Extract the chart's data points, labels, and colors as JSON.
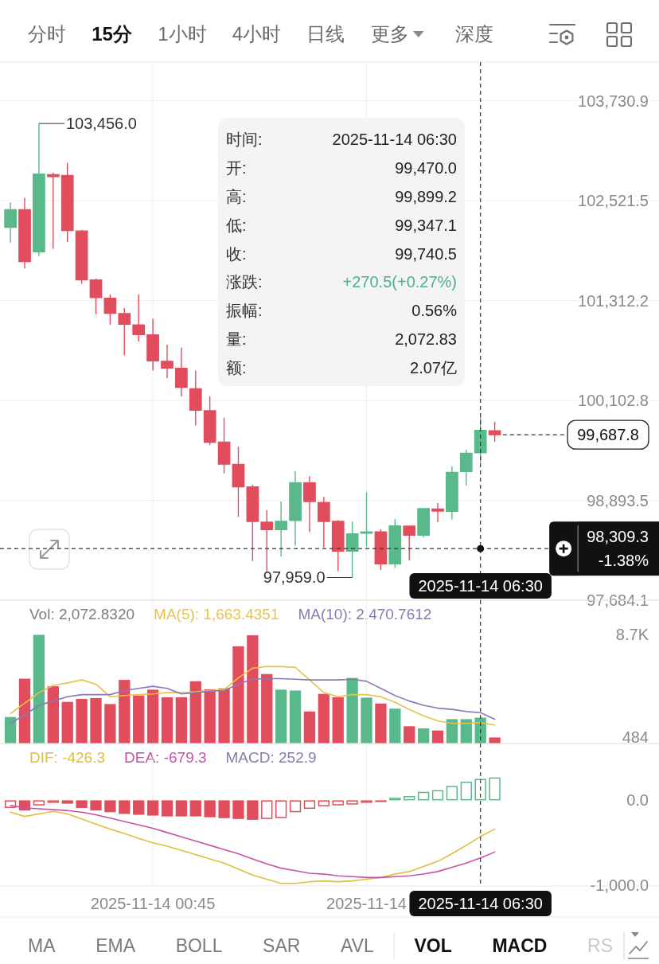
{
  "chart_data": [
    {
      "type": "other",
      "annotations": [
        "分时",
        "15分",
        "1小时",
        "4小时",
        "日线",
        "更多",
        "深度"
      ],
      "colors": [
        "#6b6b6b",
        "#111111",
        "#6b6b6b",
        "#6b6b6b",
        "#6b6b6b",
        "#6b6b6b",
        "#6b6b6b"
      ]
    },
    {
      "type": "candlestick",
      "x": [
        "2025-11-13T22:15",
        "2025-11-13T22:30",
        "2025-11-13T22:45",
        "2025-11-13T23:00",
        "2025-11-13T23:15",
        "2025-11-13T23:30",
        "2025-11-13T23:45",
        "2025-11-14T00:00",
        "2025-11-14T00:15",
        "2025-11-14T00:30",
        "2025-11-14T00:45",
        "2025-11-14T01:00",
        "2025-11-14T01:15",
        "2025-11-14T01:30",
        "2025-11-14T01:45",
        "2025-11-14T02:00",
        "2025-11-14T02:15",
        "2025-11-14T02:30",
        "2025-11-14T02:45",
        "2025-11-14T03:00",
        "2025-11-14T03:15",
        "2025-11-14T03:30",
        "2025-11-14T03:45",
        "2025-11-14T04:00",
        "2025-11-14T04:15",
        "2025-11-14T04:30",
        "2025-11-14T04:45",
        "2025-11-14T05:00",
        "2025-11-14T05:15",
        "2025-11-14T05:30",
        "2025-11-14T05:45",
        "2025-11-14T06:00",
        "2025-11-14T06:15",
        "2025-11-14T06:30",
        "2025-11-14T06:45"
      ],
      "ohlc": [
        [
          102199,
          102501,
          102014,
          102413
        ],
        [
          102413,
          102557,
          101701,
          101786
        ],
        [
          101904,
          103456.0,
          101850,
          102844
        ],
        [
          102837,
          102863,
          101940,
          102815
        ],
        [
          102826,
          102981,
          102022,
          102162
        ],
        [
          102155,
          102169,
          101516,
          101564
        ],
        [
          101561,
          101579,
          101148,
          101350
        ],
        [
          101339,
          101387,
          101018,
          101159
        ],
        [
          101155,
          101221,
          100650,
          101026
        ],
        [
          101018,
          101387,
          100816,
          100900
        ],
        [
          100897,
          101092,
          100465,
          100583
        ],
        [
          100576,
          100779,
          100373,
          100495
        ],
        [
          100491,
          100742,
          100151,
          100262
        ],
        [
          100244,
          100465,
          99801,
          99985
        ],
        [
          99978,
          100151,
          99561,
          99598
        ],
        [
          99598,
          99893,
          99222,
          99332
        ],
        [
          99329,
          99543,
          98694,
          99056
        ],
        [
          99056,
          99082,
          98159,
          98639
        ],
        [
          98628,
          98776,
          98030,
          98539
        ],
        [
          98539,
          98879,
          98215,
          98639
        ],
        [
          98650,
          99248,
          98344,
          99107
        ],
        [
          99107,
          99185,
          98510,
          98879
        ],
        [
          98868,
          98934,
          98325,
          98639
        ],
        [
          98638,
          98654,
          98038,
          98278
        ],
        [
          98278,
          98638,
          97959.0,
          98487
        ],
        [
          98500,
          98991,
          98333,
          98506
        ],
        [
          98510,
          98542,
          98050,
          98124
        ],
        [
          98124,
          98670,
          98076,
          98584
        ],
        [
          98580,
          98584,
          98166,
          98471
        ],
        [
          98471,
          98796,
          98445,
          98792
        ],
        [
          98789,
          98863,
          98629,
          98763
        ],
        [
          98760,
          99303,
          98661,
          99232
        ],
        [
          99242,
          99505,
          99072,
          99464
        ],
        [
          99470.0,
          99899.2,
          99347.1,
          99740.5
        ],
        [
          99735,
          99843,
          99602,
          99687.8
        ]
      ],
      "colors": [
        "#5ab98b",
        "#e24d5d",
        "#5ab98b",
        "#e24d5d",
        "#e24d5d",
        "#e24d5d",
        "#e24d5d",
        "#e24d5d",
        "#e24d5d",
        "#e24d5d",
        "#e24d5d",
        "#e24d5d",
        "#e24d5d",
        "#e24d5d",
        "#e24d5d",
        "#e24d5d",
        "#e24d5d",
        "#e24d5d",
        "#e24d5d",
        "#5ab98b",
        "#5ab98b",
        "#e24d5d",
        "#e24d5d",
        "#e24d5d",
        "#5ab98b",
        "#5ab98b",
        "#e24d5d",
        "#5ab98b",
        "#e24d5d",
        "#5ab98b",
        "#e24d5d",
        "#5ab98b",
        "#5ab98b",
        "#5ab98b",
        "#e24d5d"
      ],
      "xlim": [
        "2025-11-13T22:04",
        "2025-11-14T09:38"
      ],
      "xticks": [
        {
          "value": "2025-11-14T00:45",
          "label": null
        },
        {
          "value": "2025-11-14T04:30",
          "label": null
        }
      ],
      "ylim": [
        97684.1,
        104200
      ],
      "yticks": [
        {
          "value": 97684.1,
          "label": "97,684.1"
        },
        {
          "value": 98893.5,
          "label": "98,893.5"
        },
        {
          "value": 100102.8,
          "label": "100,102.8"
        },
        {
          "value": 101312.2,
          "label": "101,312.2"
        },
        {
          "value": 102521.5,
          "label": "102,521.5"
        },
        {
          "value": 103730.9,
          "label": "103,730.9"
        }
      ],
      "grid": true,
      "tick_labels": "y",
      "annotations": [
        {
          "text": "103,456.0",
          "x": "2025-11-13T22:45",
          "y": 103456.0
        },
        {
          "text": "97,959.0",
          "x": "2025-11-14T04:15",
          "y": 97959.0
        }
      ],
      "ref_lines": [
        {
          "axis": "x",
          "value": "2025-11-14T06:30",
          "label": "2025-11-14 06:30",
          "line_style": "dashed",
          "color": "#333333"
        },
        {
          "axis": "y",
          "value": 98309.3,
          "label": "98,309.3\n-1.38%",
          "line_style": "dashed",
          "color": "#333333"
        },
        {
          "axis": "y",
          "value": 99687.8,
          "label": "99,687.8",
          "line_style": "dashed",
          "color": "#333333"
        }
      ]
    },
    {
      "type": "other",
      "annotations": [
        "时间:",
        "2025-11-14 06:30",
        "开:",
        "99,470.0",
        "高:",
        "99,899.2",
        "低:",
        "99,347.1",
        "收:",
        "99,740.5",
        "涨跌:",
        "+270.5(+0.27%)",
        "振幅:",
        "0.56%",
        "量:",
        "2,072.83",
        "额:",
        "2.07亿"
      ],
      "colors": [
        "#333333",
        "#222222",
        "#333333",
        "#222222",
        "#333333",
        "#222222",
        "#333333",
        "#222222",
        "#333333",
        "#222222",
        "#333333",
        "#4cb386",
        "#333333",
        "#222222",
        "#333333",
        "#222222",
        "#333333",
        "#222222"
      ]
    },
    {
      "type": "bar",
      "x": [
        "2025-11-13T22:15",
        "2025-11-13T22:30",
        "2025-11-13T22:45",
        "2025-11-13T23:00",
        "2025-11-13T23:15",
        "2025-11-13T23:30",
        "2025-11-13T23:45",
        "2025-11-14T00:00",
        "2025-11-14T00:15",
        "2025-11-14T00:30",
        "2025-11-14T00:45",
        "2025-11-14T01:00",
        "2025-11-14T01:15",
        "2025-11-14T01:30",
        "2025-11-14T01:45",
        "2025-11-14T02:00",
        "2025-11-14T02:15",
        "2025-11-14T02:30",
        "2025-11-14T02:45",
        "2025-11-14T03:00",
        "2025-11-14T03:15",
        "2025-11-14T03:30",
        "2025-11-14T03:45",
        "2025-11-14T04:00",
        "2025-11-14T04:15",
        "2025-11-14T04:30",
        "2025-11-14T04:45",
        "2025-11-14T05:00",
        "2025-11-14T05:15",
        "2025-11-14T05:30",
        "2025-11-14T05:45",
        "2025-11-14T06:00",
        "2025-11-14T06:15",
        "2025-11-14T06:30",
        "2025-11-14T06:45"
      ],
      "legend_title": "Vol: 2,072.8320",
      "legend": "top left",
      "series": [
        {
          "type": "bar",
          "values": [
            2120,
            5190,
            8700,
            4580,
            3330,
            3570,
            3640,
            3160,
            5090,
            3840,
            4310,
            3700,
            3700,
            4980,
            4340,
            4410,
            7780,
            8660,
            5560,
            4310,
            4240,
            2560,
            3970,
            3700,
            5250,
            3670,
            3200,
            2790,
            1380,
            1210,
            1040,
            1950,
            1950,
            2072.832,
            484
          ],
          "colors": [
            "#5ab98b",
            "#e24d5d",
            "#5ab98b",
            "#e24d5d",
            "#e24d5d",
            "#e24d5d",
            "#e24d5d",
            "#e24d5d",
            "#e24d5d",
            "#e24d5d",
            "#e24d5d",
            "#e24d5d",
            "#e24d5d",
            "#e24d5d",
            "#e24d5d",
            "#e24d5d",
            "#e24d5d",
            "#e24d5d",
            "#e24d5d",
            "#5ab98b",
            "#5ab98b",
            "#e24d5d",
            "#e24d5d",
            "#e24d5d",
            "#5ab98b",
            "#5ab98b",
            "#e24d5d",
            "#5ab98b",
            "#e24d5d",
            "#5ab98b",
            "#e24d5d",
            "#5ab98b",
            "#5ab98b",
            "#5ab98b",
            "#e24d5d"
          ]
        },
        {
          "type": "line",
          "name": "MA(5): 1,663.4351",
          "color": "#e6c34b",
          "values": [
            2390,
            3230,
            4070,
            4650,
            4850,
            5090,
            4750,
            3740,
            3840,
            3910,
            3970,
            4070,
            4070,
            4140,
            4240,
            4310,
            5250,
            6030,
            6160,
            6160,
            6100,
            5090,
            4070,
            3740,
            3910,
            3910,
            3740,
            3300,
            2730,
            2220,
            1820,
            1610,
            1610,
            1663.4351,
            1480
          ]
        },
        {
          "type": "line",
          "name": "MA(10): 2,470.7612",
          "color": "#8b78b6",
          "values": [
            1610,
            2290,
            3060,
            3400,
            3740,
            3910,
            3910,
            3910,
            4240,
            4410,
            4580,
            4410,
            3970,
            4070,
            4180,
            4240,
            4750,
            5150,
            5190,
            5190,
            5150,
            5090,
            5090,
            5090,
            5150,
            4980,
            4410,
            3840,
            3400,
            3060,
            2830,
            2730,
            2560,
            2470.7612,
            1950
          ]
        }
      ],
      "xlim": [
        "2025-11-13T22:04",
        "2025-11-14T09:38"
      ],
      "xticks": [
        {
          "value": "2025-11-14T00:45",
          "label": null
        },
        {
          "value": "2025-11-14T04:30",
          "label": null
        }
      ],
      "ylim": [
        0,
        11470
      ],
      "yticks": [
        {
          "value": 484,
          "label": "484"
        },
        {
          "value": 8700,
          "label": "8.7K"
        }
      ],
      "grid": "x",
      "tick_labels": "y",
      "ref_lines": [
        {
          "axis": "x",
          "value": "2025-11-14T06:30",
          "line_style": "dashed",
          "color": "#333333"
        }
      ]
    },
    {
      "type": "bar",
      "x": [
        "2025-11-13T22:15",
        "2025-11-13T22:30",
        "2025-11-13T22:45",
        "2025-11-13T23:00",
        "2025-11-13T23:15",
        "2025-11-13T23:30",
        "2025-11-13T23:45",
        "2025-11-14T00:00",
        "2025-11-14T00:15",
        "2025-11-14T00:30",
        "2025-11-14T00:45",
        "2025-11-14T01:00",
        "2025-11-14T01:15",
        "2025-11-14T01:30",
        "2025-11-14T01:45",
        "2025-11-14T02:00",
        "2025-11-14T02:15",
        "2025-11-14T02:30",
        "2025-11-14T02:45",
        "2025-11-14T03:00",
        "2025-11-14T03:15",
        "2025-11-14T03:30",
        "2025-11-14T03:45",
        "2025-11-14T04:00",
        "2025-11-14T04:15",
        "2025-11-14T04:30",
        "2025-11-14T04:45",
        "2025-11-14T05:00",
        "2025-11-14T05:15",
        "2025-11-14T05:30",
        "2025-11-14T05:45",
        "2025-11-14T06:00",
        "2025-11-14T06:15",
        "2025-11-14T06:30",
        "2025-11-14T06:45"
      ],
      "annotations": [
        "MACD: 252.9"
      ],
      "series": [
        {
          "type": "bar",
          "values": [
            -90,
            -120,
            -60,
            -30,
            -40,
            -90,
            -120,
            -140,
            -160,
            -170,
            -180,
            -190,
            -190,
            -190,
            -200,
            -210,
            -220,
            -230,
            -220,
            -210,
            -140,
            -100,
            -70,
            -60,
            -50,
            -30,
            -20,
            30,
            50,
            100,
            120,
            170,
            220,
            252.9,
            270
          ],
          "colors": [
            "#e24d5d",
            "#e24d5d",
            "#e24d5d",
            "#e24d5d",
            "#e24d5d",
            "#e24d5d",
            "#e24d5d",
            "#e24d5d",
            "#e24d5d",
            "#e24d5d",
            "#e24d5d",
            "#e24d5d",
            "#e24d5d",
            "#e24d5d",
            "#e24d5d",
            "#e24d5d",
            "#e24d5d",
            "#e24d5d",
            "#e24d5d",
            "#e24d5d",
            "#e24d5d",
            "#e24d5d",
            "#e24d5d",
            "#e24d5d",
            "#e24d5d",
            "#e24d5d",
            "#e24d5d",
            "#5ab98b",
            "#5ab98b",
            "#5ab98b",
            "#5ab98b",
            "#5ab98b",
            "#5ab98b",
            "#5ab98b",
            "#5ab98b"
          ]
        },
        {
          "type": "line",
          "name": "DIF: -426.3",
          "color": "#e0bf3e",
          "values": [
            -140,
            -190,
            -160,
            -130,
            -160,
            -220,
            -280,
            -340,
            -390,
            -450,
            -500,
            -540,
            -590,
            -640,
            -690,
            -740,
            -810,
            -880,
            -930,
            -980,
            -980,
            -960,
            -950,
            -960,
            -950,
            -930,
            -910,
            -870,
            -840,
            -780,
            -720,
            -630,
            -530,
            -426.3,
            -340
          ]
        },
        {
          "type": "line",
          "name": "DEA: -679.3",
          "color": "#c554a6",
          "values": [
            -60,
            -90,
            -100,
            -110,
            -120,
            -140,
            -170,
            -210,
            -250,
            -290,
            -330,
            -380,
            -430,
            -480,
            -530,
            -580,
            -630,
            -690,
            -750,
            -800,
            -830,
            -860,
            -870,
            -890,
            -900,
            -910,
            -910,
            -900,
            -890,
            -870,
            -840,
            -790,
            -740,
            -679.3,
            -610
          ]
        }
      ],
      "xlim": [
        "2025-11-13T22:04",
        "2025-11-14T09:38"
      ],
      "xticks": [
        {
          "value": "2025-11-14T00:45",
          "label": "2025-11-14 00:45"
        },
        {
          "value": "2025-11-14T04:30",
          "label": "2025-11-14"
        }
      ],
      "ylim": [
        -1010,
        670
      ],
      "yticks": [
        {
          "value": 0,
          "label": "0.0"
        },
        {
          "value": -1000,
          "label": "-1,000.0"
        }
      ],
      "grid": "x",
      "ref_lines": [
        {
          "axis": "x",
          "value": "2025-11-14T06:30",
          "label": "2025-11-14 06:30",
          "line_style": "dashed",
          "color": "#333333"
        }
      ]
    },
    {
      "type": "other",
      "annotations": [
        "MA",
        "EMA",
        "BOLL",
        "SAR",
        "AVL",
        "VOL",
        "MACD",
        "RS"
      ],
      "colors": [
        "#7a7a7a",
        "#7a7a7a",
        "#7a7a7a",
        "#7a7a7a",
        "#7a7a7a",
        "#111111",
        "#111111",
        "#c9c9c9"
      ]
    }
  ]
}
